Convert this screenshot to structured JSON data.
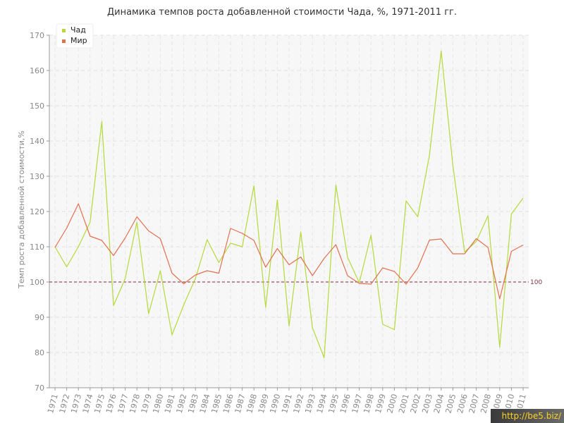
{
  "chart_data": {
    "type": "line",
    "title": "Динамика темпов роста добавленной стоимости Чада, %, 1971-2011 гг.",
    "ylabel": "Темп роста добавленной стоимости,%",
    "xlabel": "",
    "ylim": [
      70,
      170
    ],
    "yticks": [
      70,
      80,
      90,
      100,
      110,
      120,
      130,
      140,
      150,
      160,
      170
    ],
    "grid": true,
    "legend_position": "top-left",
    "x": [
      "1971",
      "1972",
      "1973",
      "1974",
      "1975",
      "1976",
      "1977",
      "1978",
      "1979",
      "1980",
      "1981",
      "1982",
      "1983",
      "1984",
      "1985",
      "1986",
      "1987",
      "1988",
      "1989",
      "1990",
      "1991",
      "1992",
      "1993",
      "1994",
      "1995",
      "1996",
      "1997",
      "1998",
      "1999",
      "2000",
      "2001",
      "2002",
      "2003",
      "2004",
      "2005",
      "2006",
      "2007",
      "2008",
      "2009",
      "2010",
      "2011"
    ],
    "series": [
      {
        "name": "Чад",
        "color": "#b5d93a",
        "values": [
          110,
          104.3,
          110,
          117,
          145.5,
          93.3,
          101,
          117,
          91,
          103.2,
          85,
          93.5,
          101,
          112,
          105.5,
          111,
          110,
          127.3,
          92.8,
          123.3,
          87.5,
          114.2,
          87,
          78.5,
          127.5,
          107,
          99.8,
          113.3,
          88,
          86.5,
          123,
          118.5,
          136,
          165.5,
          133,
          108.5,
          111.5,
          118.8,
          81.5,
          119.3,
          123.8
        ]
      },
      {
        "name": "Мир",
        "color": "#e07050",
        "values": [
          109.8,
          115.3,
          122.2,
          113,
          111.8,
          107.5,
          112.5,
          118.5,
          114.5,
          112.3,
          102.5,
          99.5,
          102,
          103.2,
          102.5,
          115.2,
          113.8,
          111.8,
          104.2,
          109.5,
          104.9,
          107.1,
          101.8,
          106.7,
          110.6,
          101.8,
          99.6,
          99.4,
          104,
          103,
          99.4,
          104,
          111.9,
          112.2,
          108,
          108,
          112.3,
          109.8,
          95.2,
          108.7,
          110.5
        ]
      }
    ],
    "reference_line": {
      "value": 100,
      "label": "100",
      "color": "#8a2233"
    }
  },
  "watermark": {
    "text": "http://be5.biz/"
  }
}
